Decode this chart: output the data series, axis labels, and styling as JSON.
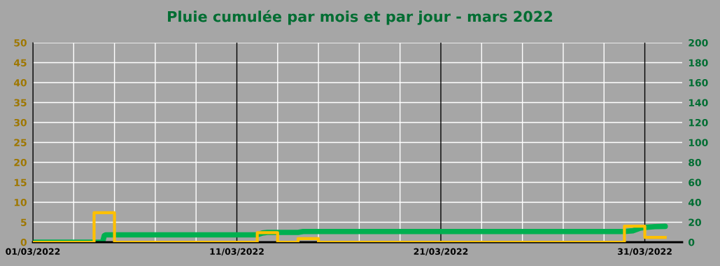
{
  "chart_data": {
    "type": "step",
    "title": "Pluie cumulée par mois et par jour - mars 2022",
    "xlim": [
      "2022-03-01",
      "2022-04-01T20:00"
    ],
    "xticks": [
      {
        "value": "2022-03-01",
        "label": "01/03/2022"
      },
      {
        "value": "2022-03-03",
        "label": null
      },
      {
        "value": "2022-03-05",
        "label": null
      },
      {
        "value": "2022-03-07",
        "label": null
      },
      {
        "value": "2022-03-09",
        "label": null
      },
      {
        "value": "2022-03-11",
        "label": "11/03/2022"
      },
      {
        "value": "2022-03-13",
        "label": null
      },
      {
        "value": "2022-03-15",
        "label": null
      },
      {
        "value": "2022-03-17",
        "label": null
      },
      {
        "value": "2022-03-19",
        "label": null
      },
      {
        "value": "2022-03-21",
        "label": "21/03/2022"
      },
      {
        "value": "2022-03-23",
        "label": null
      },
      {
        "value": "2022-03-25",
        "label": null
      },
      {
        "value": "2022-03-27",
        "label": null
      },
      {
        "value": "2022-03-29",
        "label": null
      },
      {
        "value": "2022-03-31",
        "label": "31/03/2022"
      }
    ],
    "ylim": [
      0,
      50
    ],
    "yticks": [
      0,
      5,
      10,
      15,
      20,
      25,
      30,
      35,
      40,
      45,
      50
    ],
    "y2lim": [
      0,
      200
    ],
    "y2ticks": [
      0,
      20,
      40,
      60,
      80,
      100,
      120,
      140,
      160,
      180,
      200
    ],
    "grid": true,
    "series": [
      {
        "color": "#ffc000",
        "x": [
          "2022-03-01",
          "2022-03-02",
          "2022-03-03",
          "2022-03-04",
          "2022-03-05",
          "2022-03-06",
          "2022-03-07",
          "2022-03-08",
          "2022-03-09",
          "2022-03-10",
          "2022-03-11",
          "2022-03-12",
          "2022-03-13",
          "2022-03-14",
          "2022-03-15",
          "2022-03-16",
          "2022-03-17",
          "2022-03-18",
          "2022-03-19",
          "2022-03-20",
          "2022-03-21",
          "2022-03-22",
          "2022-03-23",
          "2022-03-24",
          "2022-03-25",
          "2022-03-26",
          "2022-03-27",
          "2022-03-28",
          "2022-03-29",
          "2022-03-30",
          "2022-03-31",
          "2022-04-01"
        ],
        "values": [
          0,
          0,
          0,
          7.4,
          0,
          0,
          0,
          0,
          0,
          0,
          0,
          2.4,
          0,
          0.9,
          0,
          0,
          0,
          0,
          0,
          0,
          0,
          0,
          0,
          0,
          0,
          0,
          0,
          0,
          0,
          4.0,
          1.2,
          1.2
        ]
      },
      {
        "type": "line",
        "axis": "y2",
        "color": "#00b050",
        "x": [
          "2022-03-01",
          "2022-03-04T10:00",
          "2022-03-04T12:00",
          "2022-03-04T14:00",
          "2022-03-12T00:00",
          "2022-03-12T06:00",
          "2022-03-12T12:00",
          "2022-03-14T00:00",
          "2022-03-14T06:00",
          "2022-03-30T00:00",
          "2022-03-30T10:00",
          "2022-03-30T18:00",
          "2022-03-31T00:00",
          "2022-03-31T12:00",
          "2022-04-01T00:00"
        ],
        "values": [
          0,
          0,
          6.5,
          7.4,
          7.4,
          9.2,
          9.8,
          9.8,
          10.7,
          10.7,
          11.5,
          14.0,
          14.8,
          15.6,
          15.9
        ]
      }
    ]
  }
}
